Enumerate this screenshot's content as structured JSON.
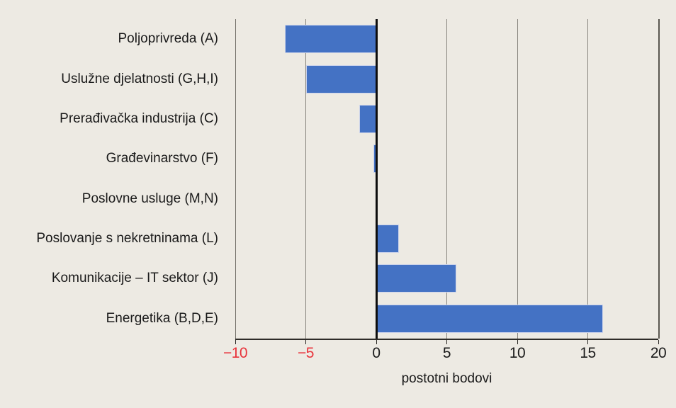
{
  "figure": {
    "background_color": "#edeae3",
    "text_color": "#1a1a1a"
  },
  "chart_data": {
    "type": "bar",
    "orientation": "horizontal",
    "title": "",
    "categories": [
      "Poljoprivreda (A)",
      "Uslužne djelatnosti (G,H,I)",
      "Prerađivačka industrija (C)",
      "Građevinarstvo (F)",
      "Poslovne usluge (M,N)",
      "Poslovanje s nekretninama (L)",
      "Komunikacije – IT sektor (J)",
      "Energetika (B,D,E)"
    ],
    "values": [
      -6.5,
      -5.0,
      -1.2,
      -0.2,
      0.1,
      1.6,
      5.7,
      16.1
    ],
    "xlabel": "postotni bodovi",
    "ylabel": "",
    "xlim": [
      -10,
      20
    ],
    "xticks": [
      -10,
      -5,
      0,
      5,
      10,
      15,
      20
    ],
    "xtick_labels": [
      "−10",
      "−5",
      "0",
      "5",
      "10",
      "15",
      "20"
    ],
    "grid": true,
    "legend": "none",
    "bar_color": "#4472c4",
    "negative_tick_color": "#e8333b",
    "zero_line_color": "#0d0d0d",
    "gridline_color": "#8a8780"
  }
}
